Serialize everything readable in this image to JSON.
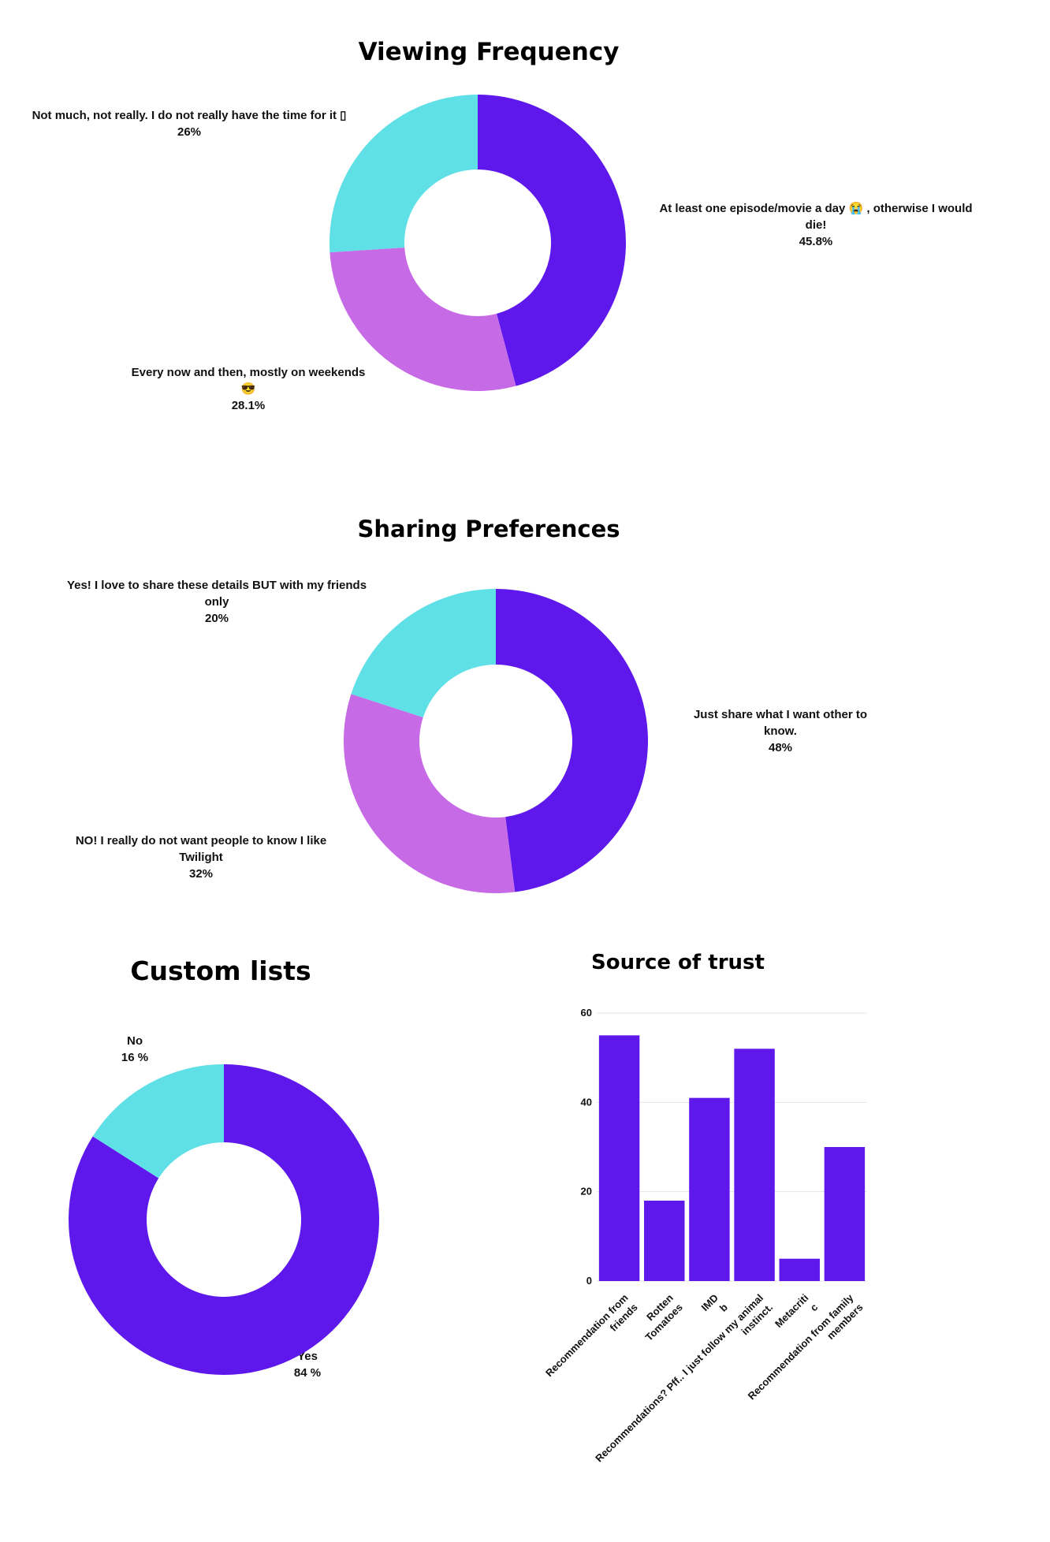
{
  "colors": {
    "purple": "#5f18eb",
    "lilac": "#c76ae6",
    "cyan": "#5fe0e6",
    "grid": "#e4e4e4"
  },
  "chart_data": [
    {
      "type": "pie",
      "title": "Viewing Frequency",
      "slices": [
        {
          "label": "At least one episode/movie a day 😭 , otherwise I would die!",
          "value": 45.8,
          "pct": "45.8%",
          "color": "#5f18eb"
        },
        {
          "label": "Every now and then, mostly on weekends 😎",
          "value": 28.1,
          "pct": "28.1%",
          "color": "#c76ae6"
        },
        {
          "label": "Not much, not really. I do not really have the time for it ▯",
          "value": 26,
          "pct": "26%",
          "color": "#5fe0e6"
        }
      ]
    },
    {
      "type": "pie",
      "title": "Sharing Preferences",
      "slices": [
        {
          "label": "Just share what I want other to know.",
          "value": 48,
          "pct": "48%",
          "color": "#5f18eb"
        },
        {
          "label": "NO! I really do not want people to know I like Twilight",
          "value": 32,
          "pct": "32%",
          "color": "#c76ae6"
        },
        {
          "label": "Yes! I love to share these details BUT with my friends only",
          "value": 20,
          "pct": "20%",
          "color": "#5fe0e6"
        }
      ]
    },
    {
      "type": "pie",
      "title": "Custom lists",
      "slices": [
        {
          "label": "Yes",
          "value": 84,
          "pct": "84 %",
          "color": "#5f18eb"
        },
        {
          "label": "No",
          "value": 16,
          "pct": "16 %",
          "color": "#5fe0e6"
        }
      ]
    },
    {
      "type": "bar",
      "title": "Source of trust",
      "categories": [
        [
          "Recommendation from",
          "friends"
        ],
        [
          "Rotten",
          "Tomatoes"
        ],
        [
          "IMD",
          "b"
        ],
        [
          "Recommendations? Pff.. I just follow my animal",
          "instinct."
        ],
        [
          "Metacriti",
          "c"
        ],
        [
          "Recommendation from family",
          "members"
        ]
      ],
      "values": [
        55,
        18,
        41,
        52,
        5,
        30
      ],
      "ylim": [
        0,
        60
      ],
      "yticks": [
        "0",
        "20",
        "40",
        "60"
      ],
      "grid": true,
      "color": "#5f18eb"
    }
  ]
}
